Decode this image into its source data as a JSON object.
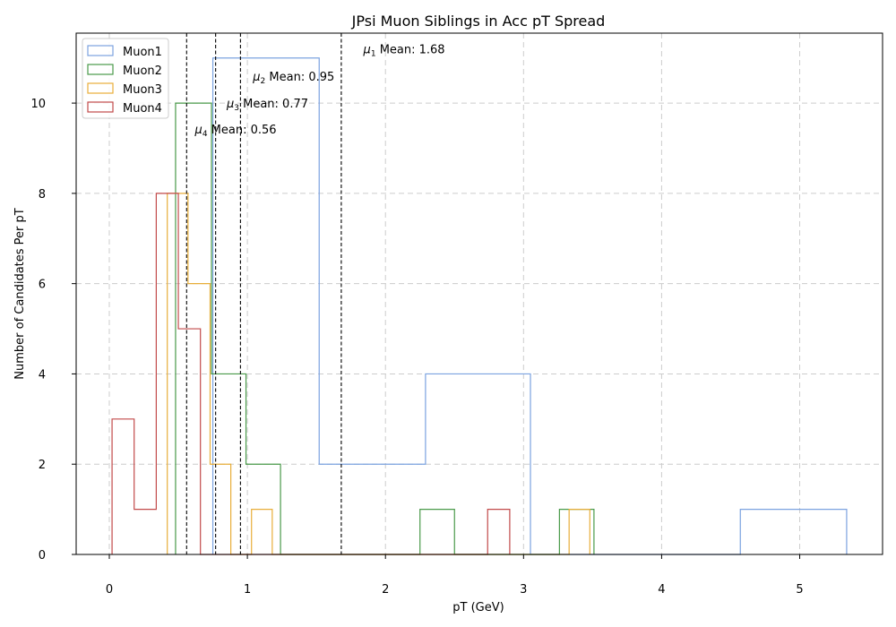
{
  "chart_data": {
    "type": "histogram",
    "title": "JPsi Muon Siblings in Acc pT Spread",
    "xlabel": "pT (GeV)",
    "ylabel": "Number of Candidates Per pT",
    "xlim": [
      -0.24,
      5.6
    ],
    "ylim": [
      0,
      11.55
    ],
    "xticks": [
      0,
      1,
      2,
      3,
      4,
      5
    ],
    "yticks": [
      0,
      2,
      4,
      6,
      8,
      10
    ],
    "grid": true,
    "legend_position": "top-left",
    "series": [
      {
        "name": "Muon1",
        "color": "#7ba2e0",
        "edges": [
          0.75,
          1.52,
          2.29,
          3.05,
          3.81,
          4.57,
          5.34
        ],
        "counts": [
          11,
          2,
          4,
          0,
          0,
          1
        ]
      },
      {
        "name": "Muon2",
        "color": "#4a9a4a",
        "edges": [
          0.48,
          0.74,
          0.99,
          1.24,
          1.49,
          1.75,
          2.0,
          2.25,
          2.5,
          2.76,
          3.01,
          3.26,
          3.51
        ],
        "counts": [
          10,
          4,
          2,
          0,
          0,
          0,
          0,
          1,
          0,
          0,
          0,
          1
        ]
      },
      {
        "name": "Muon3",
        "color": "#e8ae3a",
        "edges": [
          0.42,
          0.57,
          0.73,
          0.88,
          1.03,
          1.18,
          1.34,
          1.49,
          1.64,
          1.8,
          1.95,
          2.1,
          2.25,
          2.41,
          2.56,
          2.71,
          2.87,
          3.02,
          3.17,
          3.33,
          3.48
        ],
        "counts": [
          8,
          6,
          2,
          0,
          1,
          0,
          0,
          0,
          0,
          0,
          0,
          0,
          0,
          0,
          0,
          0,
          0,
          0,
          0,
          1
        ]
      },
      {
        "name": "Muon4",
        "color": "#c24a4a",
        "edges": [
          0.02,
          0.18,
          0.34,
          0.5,
          0.66,
          0.82,
          0.98,
          1.14,
          1.3,
          1.46,
          1.62,
          1.78,
          1.94,
          2.1,
          2.26,
          2.42,
          2.58,
          2.74,
          2.9
        ],
        "counts": [
          3,
          1,
          8,
          5,
          0,
          0,
          0,
          0,
          0,
          0,
          0,
          0,
          0,
          0,
          0,
          0,
          0,
          1
        ]
      }
    ],
    "mean_lines": [
      {
        "symbol": "μ",
        "sub": "1",
        "label": " Mean: 1.68",
        "value": 1.68,
        "label_x": 1.84,
        "label_y": 11.1
      },
      {
        "symbol": "μ",
        "sub": "2",
        "label": " Mean: 0.95",
        "value": 0.95,
        "label_x": 1.04,
        "label_y": 10.5
      },
      {
        "symbol": "μ",
        "sub": "3",
        "label": " Mean: 0.77",
        "value": 0.77,
        "label_x": 0.85,
        "label_y": 9.9
      },
      {
        "symbol": "μ",
        "sub": "4",
        "label": " Mean: 0.56",
        "value": 0.56,
        "label_x": 0.62,
        "label_y": 9.33
      }
    ]
  }
}
